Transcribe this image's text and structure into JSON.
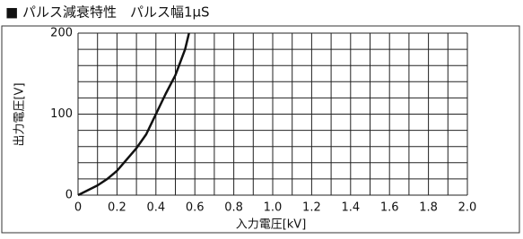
{
  "chart_data": {
    "type": "line",
    "title": "■ パルス減衰特性　パルス幅1μS",
    "x_label": "入力電圧[kV]",
    "y_label": "出力電圧[V]",
    "x": [
      0,
      0.1,
      0.15,
      0.2,
      0.25,
      0.3,
      0.35,
      0.4,
      0.45,
      0.5,
      0.55,
      0.57
    ],
    "series": [
      {
        "color": "#111111",
        "values": [
          0,
          12,
          20,
          30,
          44,
          58,
          75,
          100,
          125,
          148,
          180,
          200
        ]
      }
    ],
    "xlim": [
      0,
      2.0
    ],
    "ylim": [
      0,
      200
    ],
    "xticks": [
      0,
      0.2,
      0.4,
      0.6,
      0.8,
      {
        "value": 1.0,
        "label": "1.0"
      },
      1.2,
      1.4,
      1.6,
      1.8,
      {
        "value": 2.0,
        "label": "2.0"
      }
    ],
    "yticks": [
      0,
      100,
      200
    ],
    "grid": true
  }
}
